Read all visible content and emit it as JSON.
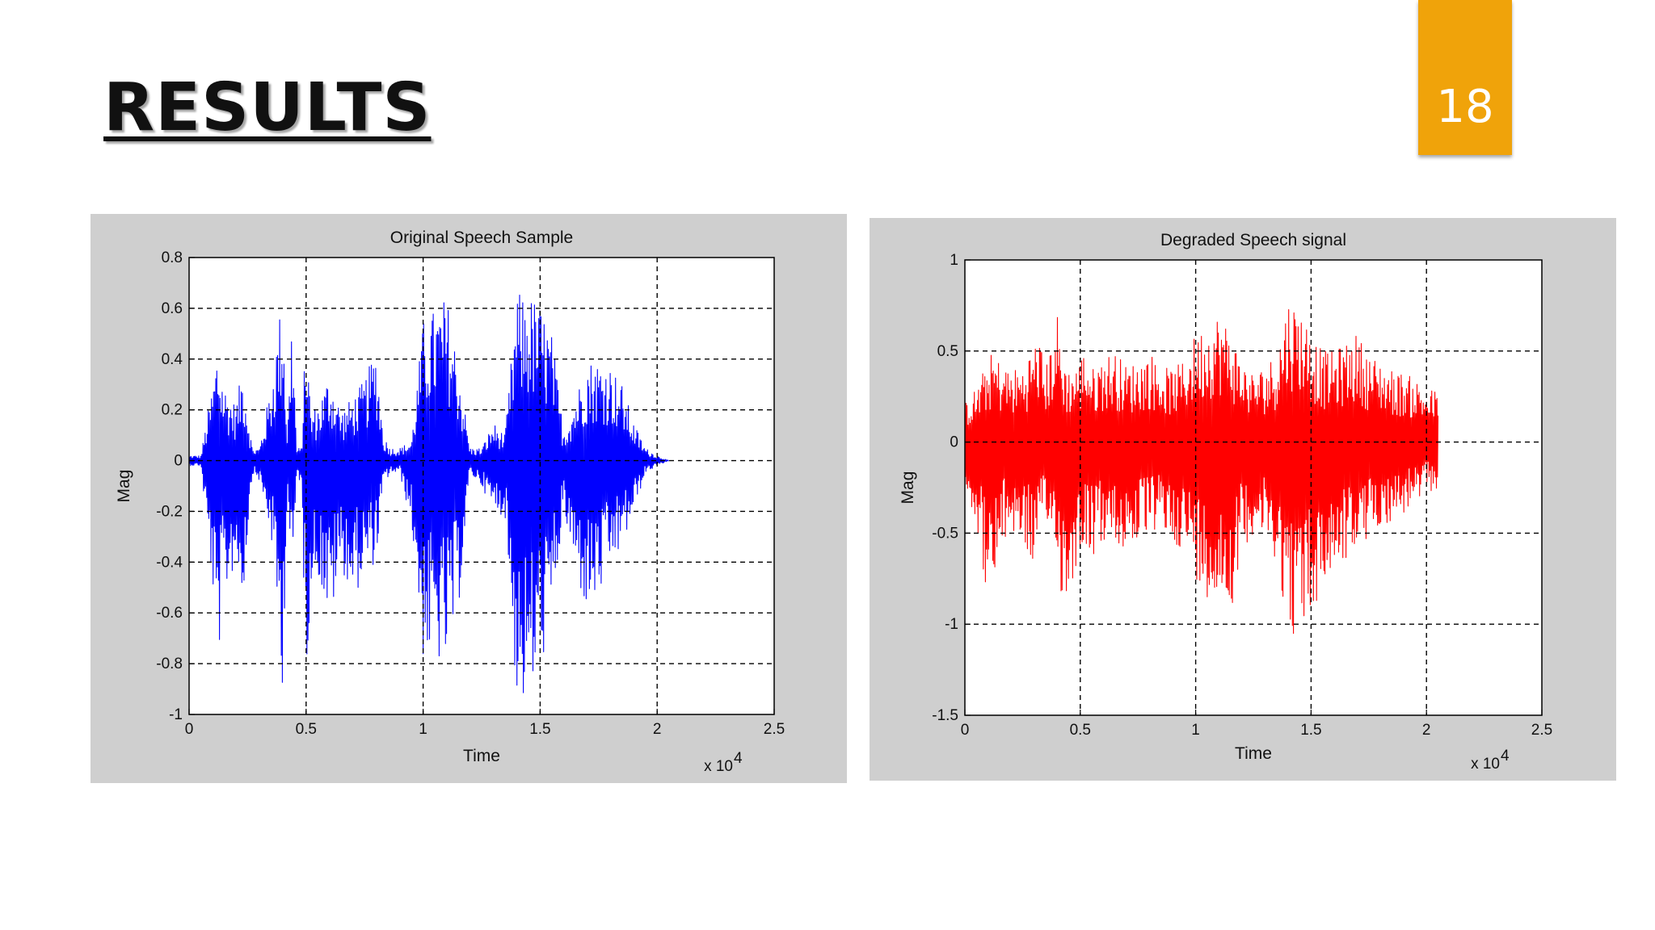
{
  "slide": {
    "title": "RESULTS",
    "page_number": "18",
    "accent_color": "#f0a30a"
  },
  "chart_data": [
    {
      "type": "line",
      "title": "Original Speech Sample",
      "xlabel": "Time",
      "ylabel": "Mag",
      "x_multiplier_label": "x 10",
      "x_multiplier_exponent": "4",
      "xlim": [
        0,
        2.5
      ],
      "ylim": [
        -1,
        0.8
      ],
      "xticks": [
        0,
        0.5,
        1,
        1.5,
        2,
        2.5
      ],
      "xtick_labels": [
        "0",
        "0.5",
        "1",
        "1.5",
        "2",
        "2.5"
      ],
      "yticks": [
        0.8,
        0.6,
        0.4,
        0.2,
        0,
        -0.2,
        -0.4,
        -0.6,
        -0.8,
        -1
      ],
      "ytick_labels": [
        "0.8",
        "0.6",
        "0.4",
        "0.2",
        "0",
        "-0.2",
        "-0.4",
        "-0.6",
        "-0.8",
        "-1"
      ],
      "grid": true,
      "color": "#0000ff",
      "series": [
        {
          "x": [
            0,
            0.05,
            0.1,
            0.12,
            0.15,
            0.2,
            0.23,
            0.27,
            0.3,
            0.35,
            0.4,
            0.42,
            0.44,
            0.46,
            0.48,
            0.5,
            0.52,
            0.55,
            0.6,
            0.65,
            0.7,
            0.75,
            0.8,
            0.83,
            0.86,
            0.9,
            0.95,
            1.0,
            1.05,
            1.1,
            1.15,
            1.2,
            1.25,
            1.3,
            1.35,
            1.4,
            1.45,
            1.5,
            1.55,
            1.6,
            1.65,
            1.7,
            1.75,
            1.8,
            1.85,
            1.9,
            1.95,
            2.0,
            2.05
          ],
          "envelope_upper": [
            0.02,
            0.02,
            0.3,
            0.45,
            0.3,
            0.22,
            0.38,
            0.05,
            0.05,
            0.3,
            0.68,
            0.1,
            0.62,
            0.05,
            0.05,
            0.56,
            0.2,
            0.22,
            0.35,
            0.2,
            0.25,
            0.32,
            0.45,
            0.1,
            0.05,
            0.05,
            0.08,
            0.55,
            0.6,
            0.65,
            0.4,
            0.05,
            0.05,
            0.15,
            0.1,
            0.66,
            0.66,
            0.62,
            0.5,
            0.12,
            0.25,
            0.4,
            0.4,
            0.38,
            0.3,
            0.15,
            0.05,
            0.02,
            0.0
          ],
          "envelope_lower": [
            -0.02,
            -0.02,
            -0.5,
            -0.82,
            -0.55,
            -0.4,
            -0.55,
            -0.05,
            -0.08,
            -0.3,
            -0.9,
            -0.1,
            -0.55,
            -0.05,
            -0.1,
            -0.88,
            -0.5,
            -0.45,
            -0.65,
            -0.42,
            -0.55,
            -0.45,
            -0.4,
            -0.1,
            -0.05,
            -0.05,
            -0.25,
            -0.78,
            -0.8,
            -0.82,
            -0.6,
            -0.05,
            -0.1,
            -0.2,
            -0.22,
            -0.95,
            -0.98,
            -0.82,
            -0.65,
            -0.2,
            -0.45,
            -0.6,
            -0.55,
            -0.42,
            -0.35,
            -0.2,
            -0.05,
            -0.02,
            0.0
          ]
        }
      ]
    },
    {
      "type": "line",
      "title": "Degraded Speech signal",
      "xlabel": "Time",
      "ylabel": "Mag",
      "x_multiplier_label": "x 10",
      "x_multiplier_exponent": "4",
      "xlim": [
        0,
        2.5
      ],
      "ylim": [
        -1.5,
        1
      ],
      "xticks": [
        0,
        0.5,
        1,
        1.5,
        2,
        2.5
      ],
      "xtick_labels": [
        "0",
        "0.5",
        "1",
        "1.5",
        "2",
        "2.5"
      ],
      "yticks": [
        1,
        0.5,
        0,
        -0.5,
        -1,
        -1.5
      ],
      "ytick_labels": [
        "1",
        "0.5",
        "0",
        "-0.5",
        "-1",
        "-1.5"
      ],
      "grid": true,
      "color": "#ff0000",
      "series": [
        {
          "x": [
            0,
            0.05,
            0.1,
            0.12,
            0.15,
            0.2,
            0.25,
            0.3,
            0.32,
            0.35,
            0.4,
            0.42,
            0.45,
            0.5,
            0.52,
            0.55,
            0.6,
            0.65,
            0.7,
            0.75,
            0.8,
            0.85,
            0.9,
            0.95,
            1.0,
            1.05,
            1.1,
            1.15,
            1.2,
            1.25,
            1.3,
            1.35,
            1.4,
            1.45,
            1.5,
            1.55,
            1.6,
            1.65,
            1.7,
            1.75,
            1.8,
            1.85,
            1.9,
            1.95,
            2.0,
            2.05
          ],
          "envelope_upper": [
            0.22,
            0.3,
            0.45,
            0.5,
            0.45,
            0.4,
            0.42,
            0.55,
            0.6,
            0.4,
            0.72,
            0.5,
            0.4,
            0.45,
            0.55,
            0.4,
            0.48,
            0.5,
            0.42,
            0.45,
            0.5,
            0.42,
            0.4,
            0.45,
            0.6,
            0.65,
            0.72,
            0.62,
            0.45,
            0.38,
            0.42,
            0.5,
            0.8,
            0.75,
            0.62,
            0.5,
            0.5,
            0.55,
            0.6,
            0.48,
            0.45,
            0.4,
            0.38,
            0.35,
            0.3,
            0.28
          ],
          "envelope_lower": [
            -0.25,
            -0.45,
            -0.9,
            -0.95,
            -0.6,
            -0.5,
            -0.55,
            -0.7,
            -0.55,
            -0.5,
            -0.55,
            -0.95,
            -0.85,
            -0.6,
            -0.55,
            -0.65,
            -0.55,
            -0.6,
            -0.6,
            -0.55,
            -0.5,
            -0.5,
            -0.55,
            -0.6,
            -0.75,
            -0.85,
            -0.9,
            -0.95,
            -0.6,
            -0.5,
            -0.55,
            -0.65,
            -1.05,
            -1.08,
            -0.95,
            -0.85,
            -0.7,
            -0.65,
            -0.6,
            -0.55,
            -0.45,
            -0.45,
            -0.4,
            -0.35,
            -0.3,
            -0.25
          ]
        }
      ]
    }
  ]
}
